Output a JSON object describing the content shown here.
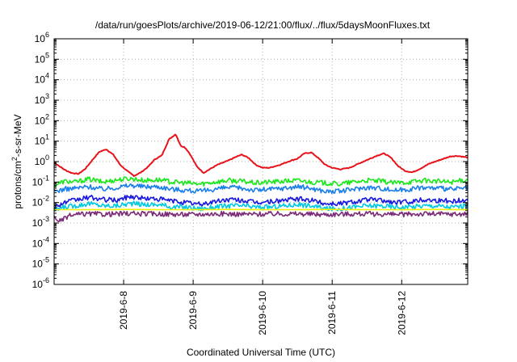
{
  "chart_data": {
    "type": "line",
    "title": "/data/run/goesPlots/archive/2019-06-12/21:00/flux/../flux/5daysMoonFluxes.txt",
    "xlabel": "Coordinated Universal Time (UTC)",
    "ylabel": {
      "pre": "protons/cm",
      "sup": "2",
      "post": "-s-sr-MeV"
    },
    "yscale": "log",
    "ylim": [
      1e-06,
      1000000.0
    ],
    "xlim": [
      0,
      5.95
    ],
    "y_ticks": [
      {
        "exp": "-6",
        "value": 1e-06
      },
      {
        "exp": "-5",
        "value": 1e-05
      },
      {
        "exp": "-4",
        "value": 0.0001
      },
      {
        "exp": "-3",
        "value": 0.001
      },
      {
        "exp": "-2",
        "value": 0.01
      },
      {
        "exp": "-1",
        "value": 0.1
      },
      {
        "exp": "0",
        "value": 1
      },
      {
        "exp": "1",
        "value": 10.0
      },
      {
        "exp": "2",
        "value": 100.0
      },
      {
        "exp": "3",
        "value": 1000.0
      },
      {
        "exp": "4",
        "value": 10000.0
      },
      {
        "exp": "5",
        "value": 100000.0
      },
      {
        "exp": "6",
        "value": 1000000.0
      }
    ],
    "y_tick_base": "10",
    "x_ticks": [
      {
        "label": "2019-6-8",
        "x": 1
      },
      {
        "label": "2019-6-9",
        "x": 2
      },
      {
        "label": "2019-6-10",
        "x": 3
      },
      {
        "label": "2019-6-11",
        "x": 4
      },
      {
        "label": "2019-6-12",
        "x": 5
      }
    ],
    "grid": true,
    "series": [
      {
        "color": "#e8121a",
        "points": [
          [
            0,
            0.9
          ],
          [
            0.15,
            0.4
          ],
          [
            0.25,
            0.28
          ],
          [
            0.35,
            0.25
          ],
          [
            0.45,
            0.45
          ],
          [
            0.55,
            1.2
          ],
          [
            0.65,
            3
          ],
          [
            0.75,
            4
          ],
          [
            0.85,
            2.2
          ],
          [
            0.95,
            0.7
          ],
          [
            1.05,
            0.35
          ],
          [
            1.15,
            0.2
          ],
          [
            1.25,
            0.3
          ],
          [
            1.35,
            0.55
          ],
          [
            1.45,
            1.3
          ],
          [
            1.55,
            2
          ],
          [
            1.65,
            12
          ],
          [
            1.75,
            22
          ],
          [
            1.82,
            6
          ],
          [
            1.88,
            5
          ],
          [
            1.95,
            2.5
          ],
          [
            2.05,
            0.6
          ],
          [
            2.15,
            0.28
          ],
          [
            2.25,
            0.45
          ],
          [
            2.35,
            0.7
          ],
          [
            2.5,
            1.1
          ],
          [
            2.6,
            1.6
          ],
          [
            2.7,
            2.2
          ],
          [
            2.8,
            1.5
          ],
          [
            2.9,
            0.7
          ],
          [
            3.0,
            0.5
          ],
          [
            3.1,
            0.5
          ],
          [
            3.25,
            0.7
          ],
          [
            3.4,
            1.1
          ],
          [
            3.5,
            1.4
          ],
          [
            3.6,
            2.5
          ],
          [
            3.7,
            2.8
          ],
          [
            3.8,
            1.5
          ],
          [
            3.9,
            0.7
          ],
          [
            4.0,
            0.5
          ],
          [
            4.12,
            0.42
          ],
          [
            4.25,
            0.5
          ],
          [
            4.4,
            0.85
          ],
          [
            4.5,
            1.2
          ],
          [
            4.65,
            2
          ],
          [
            4.75,
            2.5
          ],
          [
            4.85,
            1.5
          ],
          [
            4.95,
            0.6
          ],
          [
            5.05,
            0.35
          ],
          [
            5.15,
            0.3
          ],
          [
            5.25,
            0.42
          ],
          [
            5.4,
            0.8
          ],
          [
            5.55,
            1.2
          ],
          [
            5.7,
            1.8
          ],
          [
            5.8,
            1.9
          ],
          [
            5.9,
            1.7
          ],
          [
            5.95,
            1.6
          ]
        ]
      },
      {
        "color": "#1be81b",
        "points": [
          [
            0,
            0.07
          ],
          [
            0.15,
            0.11
          ],
          [
            0.3,
            0.1
          ],
          [
            0.5,
            0.14
          ],
          [
            0.7,
            0.1
          ],
          [
            0.9,
            0.13
          ],
          [
            1.1,
            0.15
          ],
          [
            1.3,
            0.12
          ],
          [
            1.5,
            0.13
          ],
          [
            1.7,
            0.1
          ],
          [
            1.9,
            0.09
          ],
          [
            2.1,
            0.08
          ],
          [
            2.3,
            0.1
          ],
          [
            2.5,
            0.12
          ],
          [
            2.7,
            0.11
          ],
          [
            2.9,
            0.09
          ],
          [
            3.1,
            0.1
          ],
          [
            3.3,
            0.11
          ],
          [
            3.5,
            0.12
          ],
          [
            3.7,
            0.1
          ],
          [
            3.9,
            0.09
          ],
          [
            4.1,
            0.08
          ],
          [
            4.3,
            0.1
          ],
          [
            4.5,
            0.12
          ],
          [
            4.7,
            0.11
          ],
          [
            4.9,
            0.09
          ],
          [
            5.1,
            0.1
          ],
          [
            5.3,
            0.12
          ],
          [
            5.5,
            0.11
          ],
          [
            5.7,
            0.1
          ],
          [
            5.95,
            0.13
          ]
        ]
      },
      {
        "color": "#1a7fe8",
        "points": [
          [
            0,
            0.035
          ],
          [
            0.15,
            0.045
          ],
          [
            0.3,
            0.05
          ],
          [
            0.5,
            0.06
          ],
          [
            0.7,
            0.045
          ],
          [
            0.9,
            0.055
          ],
          [
            1.1,
            0.07
          ],
          [
            1.3,
            0.06
          ],
          [
            1.5,
            0.06
          ],
          [
            1.7,
            0.045
          ],
          [
            1.9,
            0.04
          ],
          [
            2.1,
            0.035
          ],
          [
            2.3,
            0.045
          ],
          [
            2.5,
            0.055
          ],
          [
            2.7,
            0.05
          ],
          [
            2.9,
            0.04
          ],
          [
            3.1,
            0.045
          ],
          [
            3.3,
            0.05
          ],
          [
            3.5,
            0.06
          ],
          [
            3.7,
            0.05
          ],
          [
            3.9,
            0.035
          ],
          [
            4.1,
            0.035
          ],
          [
            4.3,
            0.045
          ],
          [
            4.5,
            0.055
          ],
          [
            4.7,
            0.05
          ],
          [
            4.9,
            0.04
          ],
          [
            5.1,
            0.045
          ],
          [
            5.3,
            0.055
          ],
          [
            5.5,
            0.05
          ],
          [
            5.7,
            0.045
          ],
          [
            5.95,
            0.05
          ]
        ]
      },
      {
        "color": "#1818e0",
        "points": [
          [
            0,
            0.006
          ],
          [
            0.15,
            0.01
          ],
          [
            0.3,
            0.013
          ],
          [
            0.5,
            0.018
          ],
          [
            0.7,
            0.014
          ],
          [
            0.9,
            0.013
          ],
          [
            1.1,
            0.02
          ],
          [
            1.3,
            0.016
          ],
          [
            1.5,
            0.015
          ],
          [
            1.7,
            0.012
          ],
          [
            1.9,
            0.01
          ],
          [
            2.1,
            0.008
          ],
          [
            2.3,
            0.011
          ],
          [
            2.5,
            0.014
          ],
          [
            2.7,
            0.013
          ],
          [
            2.9,
            0.01
          ],
          [
            3.1,
            0.011
          ],
          [
            3.3,
            0.013
          ],
          [
            3.5,
            0.015
          ],
          [
            3.7,
            0.013
          ],
          [
            3.9,
            0.009
          ],
          [
            4.1,
            0.009
          ],
          [
            4.3,
            0.011
          ],
          [
            4.5,
            0.014
          ],
          [
            4.7,
            0.013
          ],
          [
            4.9,
            0.01
          ],
          [
            5.1,
            0.011
          ],
          [
            5.3,
            0.014
          ],
          [
            5.5,
            0.013
          ],
          [
            5.7,
            0.012
          ],
          [
            5.95,
            0.013
          ]
        ]
      },
      {
        "color": "#00c8e0",
        "points": [
          [
            0,
            0.004
          ],
          [
            0.15,
            0.006
          ],
          [
            0.3,
            0.007
          ],
          [
            0.5,
            0.009
          ],
          [
            0.7,
            0.007
          ],
          [
            0.9,
            0.007
          ],
          [
            1.1,
            0.009
          ],
          [
            1.3,
            0.008
          ],
          [
            1.5,
            0.008
          ],
          [
            1.7,
            0.006
          ],
          [
            1.9,
            0.006
          ],
          [
            2.1,
            0.005
          ],
          [
            2.3,
            0.006
          ],
          [
            2.5,
            0.007
          ],
          [
            2.7,
            0.007
          ],
          [
            2.9,
            0.006
          ],
          [
            3.1,
            0.006
          ],
          [
            3.3,
            0.007
          ],
          [
            3.5,
            0.008
          ],
          [
            3.7,
            0.007
          ],
          [
            3.9,
            0.005
          ],
          [
            4.1,
            0.005
          ],
          [
            4.3,
            0.006
          ],
          [
            4.5,
            0.007
          ],
          [
            4.7,
            0.007
          ],
          [
            4.9,
            0.006
          ],
          [
            5.1,
            0.006
          ],
          [
            5.3,
            0.007
          ],
          [
            5.5,
            0.007
          ],
          [
            5.7,
            0.006
          ],
          [
            5.95,
            0.007
          ]
        ]
      },
      {
        "color": "#f0f000",
        "points": [
          [
            0,
            0.0045
          ],
          [
            0.5,
            0.0045
          ],
          [
            1.0,
            0.0046
          ],
          [
            1.5,
            0.0045
          ],
          [
            2.0,
            0.0045
          ],
          [
            2.5,
            0.0046
          ],
          [
            3.0,
            0.0045
          ],
          [
            3.5,
            0.0045
          ],
          [
            4.0,
            0.0046
          ],
          [
            4.5,
            0.0045
          ],
          [
            5.0,
            0.0045
          ],
          [
            5.5,
            0.0046
          ],
          [
            5.95,
            0.0045
          ]
        ]
      },
      {
        "color": "#7b2a78",
        "points": [
          [
            0,
            0.0018
          ],
          [
            0.1,
            0.0012
          ],
          [
            0.2,
            0.0022
          ],
          [
            0.35,
            0.0026
          ],
          [
            0.5,
            0.0028
          ],
          [
            0.7,
            0.0027
          ],
          [
            0.9,
            0.0028
          ],
          [
            1.1,
            0.0029
          ],
          [
            1.3,
            0.0028
          ],
          [
            1.5,
            0.0028
          ],
          [
            1.7,
            0.0027
          ],
          [
            1.9,
            0.0026
          ],
          [
            2.1,
            0.0027
          ],
          [
            2.3,
            0.0028
          ],
          [
            2.5,
            0.0028
          ],
          [
            2.7,
            0.0027
          ],
          [
            2.9,
            0.0027
          ],
          [
            3.1,
            0.0028
          ],
          [
            3.3,
            0.0028
          ],
          [
            3.5,
            0.0028
          ],
          [
            3.7,
            0.0027
          ],
          [
            3.9,
            0.0026
          ],
          [
            4.1,
            0.0027
          ],
          [
            4.3,
            0.0028
          ],
          [
            4.5,
            0.0028
          ],
          [
            4.7,
            0.0027
          ],
          [
            4.9,
            0.0026
          ],
          [
            5.1,
            0.0027
          ],
          [
            5.3,
            0.0028
          ],
          [
            5.5,
            0.0028
          ],
          [
            5.7,
            0.0027
          ],
          [
            5.95,
            0.0028
          ]
        ]
      }
    ]
  }
}
